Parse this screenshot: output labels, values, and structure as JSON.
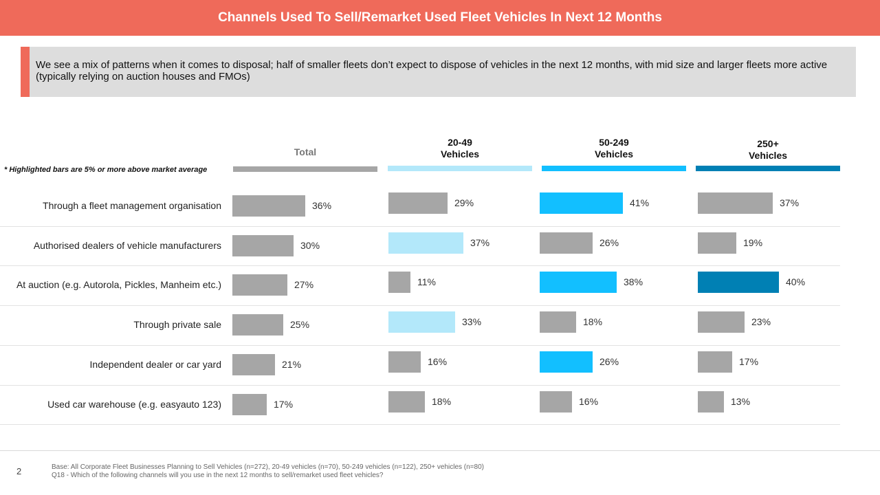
{
  "title": "Channels Used To Sell/Remarket Used Fleet Vehicles In Next 12 Months",
  "callout": "We see a mix of patterns when it comes to disposal; half of smaller fleets don’t expect to dispose of vehicles in the next 12 months, with mid size and larger fleets more active (typically relying on auction houses and FMOs)",
  "note": "* Highlighted bars are 5% or more above market average",
  "footer": {
    "page": "2",
    "base": "Base: All Corporate Fleet Businesses Planning to Sell Vehicles (n=272), 20-49 vehicles (n=70), 50-249 vehicles (n=122), 250+ vehicles (n=80)",
    "question": "Q18 - Which of the following channels will you use in the next 12 months to sell/remarket used fleet vehicles?"
  },
  "colors": {
    "gray": "#A6A6A6",
    "light_blue": "#B3E8FA",
    "mid_blue": "#12BFFF",
    "dark_blue": "#0080B4",
    "accent": "#EF6A5A"
  },
  "chart_data": {
    "type": "bar",
    "orientation": "horizontal",
    "unit": "%",
    "categories": [
      "Through a fleet management organisation",
      "Authorised dealers of vehicle manufacturers",
      "At auction (e.g. Autorola, Pickles, Manheim etc.)",
      "Through private sale",
      "Independent dealer or car yard",
      "Used car warehouse (e.g. easyauto 123)"
    ],
    "series": [
      {
        "name": "Total",
        "header_lines": [
          "Total"
        ],
        "color": "#A6A6A6",
        "highlight_color": "#A6A6A6",
        "values": [
          36,
          30,
          27,
          25,
          21,
          17
        ],
        "highlighted": [
          false,
          false,
          false,
          false,
          false,
          false
        ]
      },
      {
        "name": "20-49 Vehicles",
        "header_lines": [
          "20-49",
          "Vehicles"
        ],
        "color": "#B3E8FA",
        "highlight_color": "#B3E8FA",
        "values": [
          29,
          37,
          11,
          33,
          16,
          18
        ],
        "highlighted": [
          false,
          true,
          false,
          true,
          false,
          false
        ]
      },
      {
        "name": "50-249 Vehicles",
        "header_lines": [
          "50-249",
          "Vehicles"
        ],
        "color": "#12BFFF",
        "highlight_color": "#12BFFF",
        "values": [
          41,
          26,
          38,
          18,
          26,
          16
        ],
        "highlighted": [
          true,
          false,
          true,
          false,
          true,
          false
        ]
      },
      {
        "name": "250+ Vehicles",
        "header_lines": [
          "250+",
          "Vehicles"
        ],
        "color": "#0080B4",
        "highlight_color": "#0080B4",
        "values": [
          37,
          19,
          40,
          23,
          17,
          13
        ],
        "highlighted": [
          false,
          false,
          true,
          false,
          false,
          false
        ]
      }
    ],
    "xlim": [
      0,
      70
    ],
    "legend": "none"
  }
}
